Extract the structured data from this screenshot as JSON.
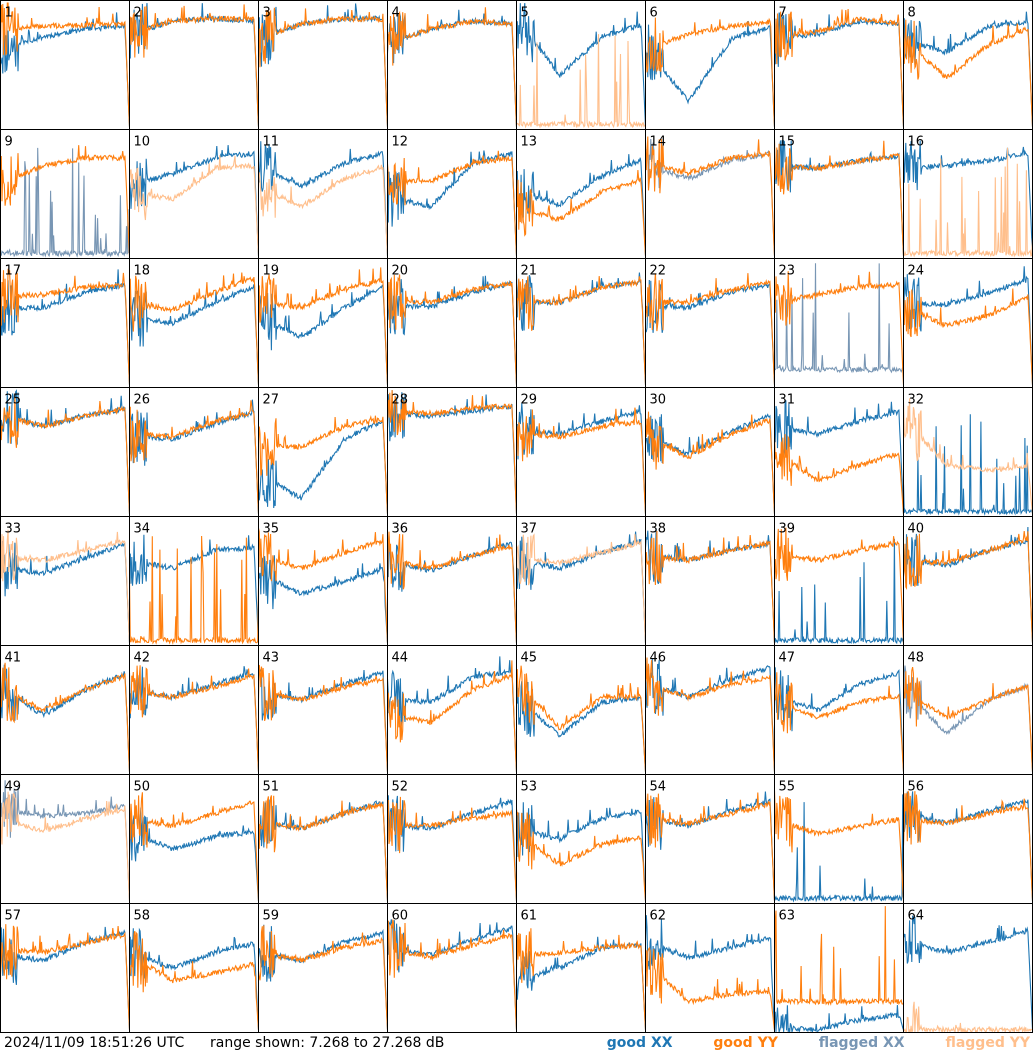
{
  "footer": {
    "timestamp": "2024/11/09 18:51:26 UTC",
    "range_text": "range shown: 7.268 to 27.268 dB"
  },
  "legend": {
    "good_xx": {
      "state": "good",
      "pol": "XX",
      "color": "#1f77b4"
    },
    "good_yy": {
      "state": "good",
      "pol": "YY",
      "color": "#ff7f0e"
    },
    "flagged_xx": {
      "state": "flagged",
      "pol": "XX",
      "color": "#7896b4"
    },
    "flagged_yy": {
      "state": "flagged",
      "pol": "YY",
      "color": "#ffbf8c"
    }
  },
  "chart_data": {
    "type": "line",
    "layout": "small-multiples 8x8",
    "ylim": [
      7.268,
      27.268
    ],
    "yunit": "dB",
    "series_keys": [
      "XX",
      "YY"
    ],
    "panels": [
      {
        "label": "1",
        "xx": "good",
        "yy": "good",
        "xx_level": [
          0.62,
          0.72,
          0.78,
          0.8
        ],
        "yy_level": [
          0.78,
          0.8,
          0.81,
          0.82
        ],
        "dropout": "yy-mid"
      },
      {
        "label": "2",
        "xx": "good",
        "yy": "good",
        "xx_level": [
          0.74,
          0.84,
          0.86,
          0.84
        ],
        "yy_level": [
          0.74,
          0.84,
          0.86,
          0.85
        ]
      },
      {
        "label": "3",
        "xx": "good",
        "yy": "good",
        "xx_level": [
          0.7,
          0.82,
          0.86,
          0.86
        ],
        "yy_level": [
          0.7,
          0.82,
          0.86,
          0.85
        ]
      },
      {
        "label": "4",
        "xx": "good",
        "yy": "good",
        "xx_level": [
          0.66,
          0.78,
          0.84,
          0.82
        ],
        "yy_level": [
          0.66,
          0.78,
          0.84,
          0.82
        ]
      },
      {
        "label": "5",
        "xx": "good",
        "yy": "flagged",
        "xx_level": [
          0.86,
          0.42,
          0.72,
          0.82
        ],
        "yy_level": [
          0.02,
          0.02,
          0.02,
          0.02
        ],
        "spikes": "yy"
      },
      {
        "label": "6",
        "xx": "good",
        "yy": "good",
        "xx_level": [
          0.64,
          0.22,
          0.7,
          0.8
        ],
        "yy_level": [
          0.62,
          0.74,
          0.8,
          0.84
        ]
      },
      {
        "label": "7",
        "xx": "good",
        "yy": "good",
        "xx_level": [
          0.7,
          0.74,
          0.84,
          0.82
        ],
        "yy_level": [
          0.72,
          0.76,
          0.86,
          0.82
        ]
      },
      {
        "label": "8",
        "xx": "good",
        "yy": "good",
        "xx_level": [
          0.7,
          0.6,
          0.8,
          0.84
        ],
        "yy_level": [
          0.7,
          0.4,
          0.66,
          0.8
        ]
      },
      {
        "label": "9",
        "xx": "flagged",
        "yy": "good",
        "xx_level": [
          0.02,
          0.02,
          0.02,
          0.02
        ],
        "yy_level": [
          0.58,
          0.72,
          0.78,
          0.78
        ],
        "spikes": "xx"
      },
      {
        "label": "10",
        "xx": "good",
        "yy": "flagged",
        "xx_level": [
          0.56,
          0.66,
          0.78,
          0.82
        ],
        "yy_level": [
          0.52,
          0.46,
          0.7,
          0.72
        ]
      },
      {
        "label": "11",
        "xx": "good",
        "yy": "flagged",
        "xx_level": [
          0.7,
          0.56,
          0.74,
          0.82
        ],
        "yy_level": [
          0.56,
          0.4,
          0.62,
          0.72
        ]
      },
      {
        "label": "12",
        "xx": "good",
        "yy": "good",
        "xx_level": [
          0.48,
          0.4,
          0.74,
          0.82
        ],
        "yy_level": [
          0.6,
          0.6,
          0.74,
          0.78
        ]
      },
      {
        "label": "13",
        "xx": "good",
        "yy": "good",
        "xx_level": [
          0.52,
          0.42,
          0.64,
          0.78
        ],
        "yy_level": [
          0.4,
          0.3,
          0.52,
          0.62
        ]
      },
      {
        "label": "14",
        "xx": "flagged",
        "yy": "good",
        "xx_level": [
          0.72,
          0.62,
          0.76,
          0.82
        ],
        "yy_level": [
          0.74,
          0.66,
          0.78,
          0.82
        ]
      },
      {
        "label": "15",
        "xx": "good",
        "yy": "good",
        "xx_level": [
          0.72,
          0.7,
          0.76,
          0.8
        ],
        "yy_level": [
          0.72,
          0.7,
          0.76,
          0.8
        ]
      },
      {
        "label": "16",
        "xx": "good",
        "yy": "flagged",
        "xx_level": [
          0.7,
          0.72,
          0.76,
          0.82
        ],
        "yy_level": [
          0.02,
          0.02,
          0.02,
          0.02
        ],
        "spikes": "yy"
      },
      {
        "label": "17",
        "xx": "good",
        "yy": "good",
        "xx_level": [
          0.62,
          0.62,
          0.74,
          0.8
        ],
        "yy_level": [
          0.7,
          0.72,
          0.78,
          0.8
        ]
      },
      {
        "label": "18",
        "xx": "good",
        "yy": "good",
        "xx_level": [
          0.54,
          0.5,
          0.66,
          0.8
        ],
        "yy_level": [
          0.66,
          0.6,
          0.74,
          0.86
        ]
      },
      {
        "label": "19",
        "xx": "good",
        "yy": "good",
        "xx_level": [
          0.56,
          0.38,
          0.62,
          0.8
        ],
        "yy_level": [
          0.66,
          0.62,
          0.76,
          0.84
        ]
      },
      {
        "label": "20",
        "xx": "good",
        "yy": "good",
        "xx_level": [
          0.64,
          0.62,
          0.74,
          0.82
        ],
        "yy_level": [
          0.66,
          0.66,
          0.76,
          0.82
        ]
      },
      {
        "label": "21",
        "xx": "good",
        "yy": "good",
        "xx_level": [
          0.66,
          0.66,
          0.78,
          0.82
        ],
        "yy_level": [
          0.66,
          0.66,
          0.78,
          0.82
        ]
      },
      {
        "label": "22",
        "xx": "good",
        "yy": "good",
        "xx_level": [
          0.64,
          0.62,
          0.74,
          0.8
        ],
        "yy_level": [
          0.66,
          0.66,
          0.76,
          0.82
        ]
      },
      {
        "label": "23",
        "xx": "flagged",
        "yy": "good",
        "xx_level": [
          0.12,
          0.3,
          0.44,
          0.46
        ],
        "yy_level": [
          0.66,
          0.72,
          0.78,
          0.8
        ],
        "spikes": "xx"
      },
      {
        "label": "24",
        "xx": "good",
        "yy": "good",
        "xx_level": [
          0.66,
          0.64,
          0.74,
          0.84
        ],
        "yy_level": [
          0.62,
          0.48,
          0.56,
          0.72
        ]
      },
      {
        "label": "25",
        "xx": "good",
        "yy": "good",
        "xx_level": [
          0.78,
          0.7,
          0.78,
          0.84
        ],
        "yy_level": [
          0.78,
          0.7,
          0.78,
          0.84
        ]
      },
      {
        "label": "26",
        "xx": "good",
        "yy": "good",
        "xx_level": [
          0.62,
          0.6,
          0.72,
          0.82
        ],
        "yy_level": [
          0.64,
          0.62,
          0.74,
          0.82
        ]
      },
      {
        "label": "27",
        "xx": "good",
        "yy": "good",
        "xx_level": [
          0.34,
          0.14,
          0.6,
          0.76
        ],
        "yy_level": [
          0.54,
          0.54,
          0.7,
          0.76
        ]
      },
      {
        "label": "28",
        "xx": "good",
        "yy": "good",
        "xx_level": [
          0.8,
          0.78,
          0.82,
          0.86
        ],
        "yy_level": [
          0.8,
          0.8,
          0.84,
          0.86
        ]
      },
      {
        "label": "29",
        "xx": "good",
        "yy": "good",
        "xx_level": [
          0.66,
          0.64,
          0.74,
          0.82
        ],
        "yy_level": [
          0.64,
          0.62,
          0.7,
          0.74
        ]
      },
      {
        "label": "30",
        "xx": "good",
        "yy": "good",
        "xx_level": [
          0.64,
          0.48,
          0.66,
          0.8
        ],
        "yy_level": [
          0.62,
          0.46,
          0.64,
          0.76
        ]
      },
      {
        "label": "31",
        "xx": "good",
        "yy": "good",
        "xx_level": [
          0.7,
          0.64,
          0.74,
          0.82
        ],
        "yy_level": [
          0.5,
          0.28,
          0.4,
          0.5
        ]
      },
      {
        "label": "32",
        "xx": "good",
        "yy": "flagged",
        "xx_level": [
          0.02,
          0.02,
          0.02,
          0.02
        ],
        "yy_level": [
          0.76,
          0.4,
          0.36,
          0.4
        ],
        "spikes": "xx"
      },
      {
        "label": "33",
        "xx": "good",
        "yy": "flagged",
        "xx_level": [
          0.6,
          0.56,
          0.68,
          0.8
        ],
        "yy_level": [
          0.68,
          0.66,
          0.74,
          0.82
        ]
      },
      {
        "label": "34",
        "xx": "good",
        "yy": "good",
        "xx_level": [
          0.66,
          0.6,
          0.74,
          0.76
        ],
        "yy_level": [
          0.02,
          0.02,
          0.08,
          0.06
        ],
        "spikes": "yy"
      },
      {
        "label": "35",
        "xx": "good",
        "yy": "good",
        "xx_level": [
          0.56,
          0.4,
          0.5,
          0.6
        ],
        "yy_level": [
          0.7,
          0.6,
          0.72,
          0.82
        ]
      },
      {
        "label": "36",
        "xx": "good",
        "yy": "good",
        "xx_level": [
          0.66,
          0.58,
          0.7,
          0.8
        ],
        "yy_level": [
          0.66,
          0.6,
          0.7,
          0.78
        ]
      },
      {
        "label": "37",
        "xx": "good",
        "yy": "flagged",
        "xx_level": [
          0.66,
          0.6,
          0.72,
          0.82
        ],
        "yy_level": [
          0.68,
          0.64,
          0.72,
          0.8
        ]
      },
      {
        "label": "38",
        "xx": "good",
        "yy": "good",
        "xx_level": [
          0.7,
          0.66,
          0.74,
          0.8
        ],
        "yy_level": [
          0.7,
          0.66,
          0.74,
          0.8
        ]
      },
      {
        "label": "39",
        "xx": "good",
        "yy": "good",
        "xx_level": [
          0.02,
          0.02,
          0.02,
          0.02
        ],
        "yy_level": [
          0.7,
          0.66,
          0.74,
          0.8
        ],
        "spikes": "xx"
      },
      {
        "label": "40",
        "xx": "good",
        "yy": "good",
        "xx_level": [
          0.66,
          0.62,
          0.74,
          0.82
        ],
        "yy_level": [
          0.66,
          0.64,
          0.74,
          0.84
        ]
      },
      {
        "label": "41",
        "xx": "good",
        "yy": "good",
        "xx_level": [
          0.66,
          0.46,
          0.66,
          0.8
        ],
        "yy_level": [
          0.66,
          0.5,
          0.66,
          0.78
        ]
      },
      {
        "label": "42",
        "xx": "good",
        "yy": "good",
        "xx_level": [
          0.66,
          0.6,
          0.7,
          0.8
        ],
        "yy_level": [
          0.66,
          0.6,
          0.68,
          0.78
        ]
      },
      {
        "label": "43",
        "xx": "good",
        "yy": "good",
        "xx_level": [
          0.64,
          0.58,
          0.7,
          0.8
        ],
        "yy_level": [
          0.64,
          0.58,
          0.68,
          0.74
        ]
      },
      {
        "label": "44",
        "xx": "good",
        "yy": "good",
        "xx_level": [
          0.58,
          0.56,
          0.76,
          0.8
        ],
        "yy_level": [
          0.48,
          0.4,
          0.66,
          0.78
        ]
      },
      {
        "label": "45",
        "xx": "good",
        "yy": "good",
        "xx_level": [
          0.6,
          0.3,
          0.56,
          0.6
        ],
        "yy_level": [
          0.72,
          0.36,
          0.6,
          0.6
        ]
      },
      {
        "label": "46",
        "xx": "good",
        "yy": "good",
        "xx_level": [
          0.7,
          0.6,
          0.74,
          0.84
        ],
        "yy_level": [
          0.7,
          0.6,
          0.7,
          0.76
        ]
      },
      {
        "label": "47",
        "xx": "good",
        "yy": "good",
        "xx_level": [
          0.6,
          0.5,
          0.7,
          0.8
        ],
        "yy_level": [
          0.58,
          0.44,
          0.56,
          0.62
        ]
      },
      {
        "label": "48",
        "xx": "flagged",
        "yy": "good",
        "xx_level": [
          0.66,
          0.32,
          0.58,
          0.7
        ],
        "yy_level": [
          0.66,
          0.44,
          0.58,
          0.7
        ]
      },
      {
        "label": "49",
        "xx": "flagged",
        "yy": "flagged",
        "xx_level": [
          0.74,
          0.68,
          0.7,
          0.76
        ],
        "yy_level": [
          0.66,
          0.56,
          0.66,
          0.74
        ]
      },
      {
        "label": "50",
        "xx": "good",
        "yy": "good",
        "xx_level": [
          0.56,
          0.42,
          0.52,
          0.56
        ],
        "yy_level": [
          0.66,
          0.6,
          0.7,
          0.8
        ]
      },
      {
        "label": "51",
        "xx": "good",
        "yy": "good",
        "xx_level": [
          0.64,
          0.58,
          0.7,
          0.8
        ],
        "yy_level": [
          0.64,
          0.58,
          0.7,
          0.78
        ]
      },
      {
        "label": "52",
        "xx": "good",
        "yy": "good",
        "xx_level": [
          0.62,
          0.58,
          0.7,
          0.8
        ],
        "yy_level": [
          0.62,
          0.6,
          0.66,
          0.7
        ]
      },
      {
        "label": "53",
        "xx": "good",
        "yy": "good",
        "xx_level": [
          0.58,
          0.5,
          0.66,
          0.72
        ],
        "yy_level": [
          0.56,
          0.3,
          0.46,
          0.52
        ]
      },
      {
        "label": "54",
        "xx": "good",
        "yy": "good",
        "xx_level": [
          0.66,
          0.6,
          0.72,
          0.8
        ],
        "yy_level": [
          0.66,
          0.62,
          0.7,
          0.78
        ]
      },
      {
        "label": "55",
        "xx": "good",
        "yy": "good",
        "xx_level": [
          0.02,
          0.02,
          0.04,
          0.06
        ],
        "yy_level": [
          0.66,
          0.54,
          0.6,
          0.66
        ],
        "spikes": "xx"
      },
      {
        "label": "56",
        "xx": "good",
        "yy": "good",
        "xx_level": [
          0.7,
          0.62,
          0.72,
          0.8
        ],
        "yy_level": [
          0.66,
          0.62,
          0.7,
          0.76
        ]
      },
      {
        "label": "57",
        "xx": "good",
        "yy": "good",
        "xx_level": [
          0.6,
          0.56,
          0.7,
          0.78
        ],
        "yy_level": [
          0.64,
          0.62,
          0.7,
          0.76
        ]
      },
      {
        "label": "58",
        "xx": "good",
        "yy": "good",
        "xx_level": [
          0.62,
          0.5,
          0.62,
          0.7
        ],
        "yy_level": [
          0.6,
          0.4,
          0.46,
          0.54
        ]
      },
      {
        "label": "59",
        "xx": "good",
        "yy": "good",
        "xx_level": [
          0.62,
          0.56,
          0.7,
          0.78
        ],
        "yy_level": [
          0.62,
          0.56,
          0.66,
          0.72
        ]
      },
      {
        "label": "60",
        "xx": "good",
        "yy": "good",
        "xx_level": [
          0.66,
          0.6,
          0.72,
          0.82
        ],
        "yy_level": [
          0.66,
          0.58,
          0.68,
          0.76
        ]
      },
      {
        "label": "61",
        "xx": "good",
        "yy": "good",
        "xx_level": [
          0.4,
          0.5,
          0.66,
          0.68
        ],
        "yy_level": [
          0.6,
          0.62,
          0.66,
          0.68
        ]
      },
      {
        "label": "62",
        "xx": "good",
        "yy": "good",
        "xx_level": [
          0.7,
          0.58,
          0.66,
          0.74
        ],
        "yy_level": [
          0.54,
          0.24,
          0.3,
          0.32
        ]
      },
      {
        "label": "63",
        "xx": "good",
        "yy": "good",
        "xx_level": [
          0.04,
          0.02,
          0.1,
          0.14
        ],
        "yy_level": [
          0.22,
          0.04,
          0.08,
          0.1
        ],
        "spikes": "yy"
      },
      {
        "label": "64",
        "xx": "good",
        "yy": "flagged",
        "xx_level": [
          0.72,
          0.62,
          0.7,
          0.8
        ],
        "yy_level": [
          0.02,
          0.02,
          0.02,
          0.02
        ]
      }
    ]
  }
}
